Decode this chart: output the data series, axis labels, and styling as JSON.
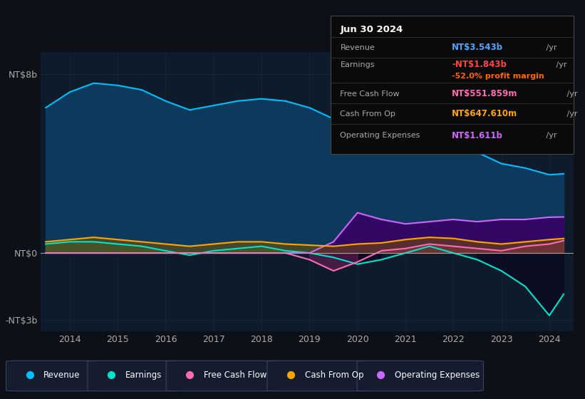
{
  "bg_color": "#0d1117",
  "plot_bg_color": "#0d1b2a",
  "title_box": {
    "date": "Jun 30 2024",
    "rows": [
      {
        "label": "Revenue",
        "value": "NT$3.543b",
        "value_color": "#4da6ff",
        "suffix": " /yr",
        "extra": null,
        "extra_color": null
      },
      {
        "label": "Earnings",
        "value": "-NT$1.843b",
        "value_color": "#ff4444",
        "suffix": " /yr",
        "extra": "-52.0% profit margin",
        "extra_color": "#ff6600"
      },
      {
        "label": "Free Cash Flow",
        "value": "NT$551.859m",
        "value_color": "#ff69b4",
        "suffix": " /yr",
        "extra": null,
        "extra_color": null
      },
      {
        "label": "Cash From Op",
        "value": "NT$647.610m",
        "value_color": "#ffa500",
        "suffix": " /yr",
        "extra": null,
        "extra_color": null
      },
      {
        "label": "Operating Expenses",
        "value": "NT$1.611b",
        "value_color": "#cc66ff",
        "suffix": " /yr",
        "extra": null,
        "extra_color": null
      }
    ]
  },
  "ylim": [
    -3.5,
    9.0
  ],
  "y_label_vals": [
    8,
    0,
    -3
  ],
  "y_label_texts": [
    "NT$8b",
    "NT$0",
    "-NT$3b"
  ],
  "x_ticks": [
    2014,
    2015,
    2016,
    2017,
    2018,
    2019,
    2020,
    2021,
    2022,
    2023,
    2024
  ],
  "legend": [
    {
      "label": "Revenue",
      "color": "#00bfff"
    },
    {
      "label": "Earnings",
      "color": "#00e5cc"
    },
    {
      "label": "Free Cash Flow",
      "color": "#ff69b4"
    },
    {
      "label": "Cash From Op",
      "color": "#ffa500"
    },
    {
      "label": "Operating Expenses",
      "color": "#cc66ff"
    }
  ],
  "years": [
    2013.5,
    2014.0,
    2014.5,
    2015.0,
    2015.5,
    2016.0,
    2016.5,
    2017.0,
    2017.5,
    2018.0,
    2018.5,
    2019.0,
    2019.5,
    2020.0,
    2020.5,
    2021.0,
    2021.5,
    2022.0,
    2022.5,
    2023.0,
    2023.5,
    2024.0,
    2024.3
  ],
  "revenue": [
    6.5,
    7.2,
    7.6,
    7.5,
    7.3,
    6.8,
    6.4,
    6.6,
    6.8,
    6.9,
    6.8,
    6.5,
    6.0,
    5.8,
    5.4,
    5.5,
    5.8,
    5.2,
    4.5,
    4.0,
    3.8,
    3.5,
    3.543
  ],
  "earnings": [
    0.4,
    0.5,
    0.5,
    0.4,
    0.3,
    0.1,
    -0.1,
    0.1,
    0.2,
    0.3,
    0.1,
    0.0,
    -0.2,
    -0.5,
    -0.3,
    0.0,
    0.3,
    0.0,
    -0.3,
    -0.8,
    -1.5,
    -2.8,
    -1.843
  ],
  "free_cf": [
    0.0,
    0.0,
    0.0,
    0.0,
    0.0,
    0.0,
    0.0,
    0.0,
    0.0,
    0.0,
    0.0,
    -0.3,
    -0.8,
    -0.4,
    0.1,
    0.2,
    0.4,
    0.3,
    0.2,
    0.1,
    0.3,
    0.4,
    0.552
  ],
  "cash_op": [
    0.5,
    0.6,
    0.7,
    0.6,
    0.5,
    0.4,
    0.3,
    0.4,
    0.5,
    0.5,
    0.4,
    0.35,
    0.3,
    0.4,
    0.45,
    0.6,
    0.7,
    0.65,
    0.5,
    0.4,
    0.5,
    0.6,
    0.648
  ],
  "op_exp": [
    0.0,
    0.0,
    0.0,
    0.0,
    0.0,
    0.0,
    0.0,
    0.0,
    0.0,
    0.0,
    0.0,
    0.0,
    0.5,
    1.8,
    1.5,
    1.3,
    1.4,
    1.5,
    1.4,
    1.5,
    1.5,
    1.6,
    1.611
  ]
}
